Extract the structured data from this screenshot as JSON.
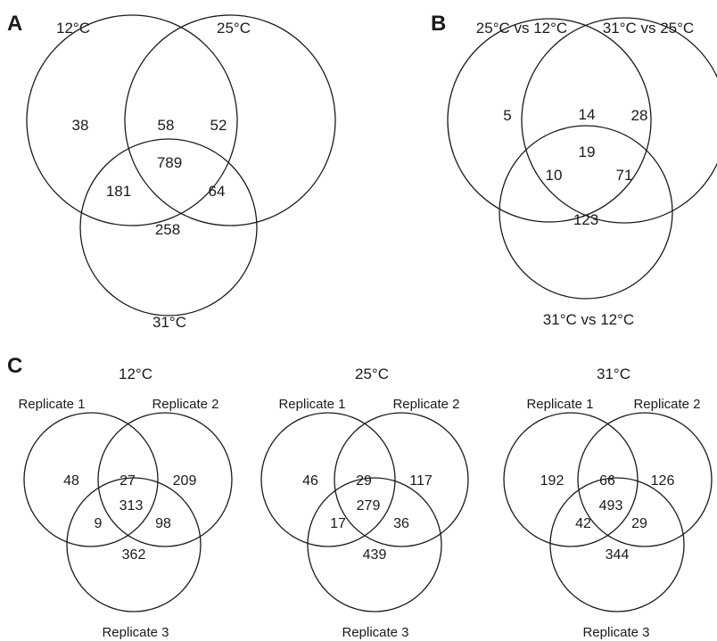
{
  "panel_a": {
    "letter": "A",
    "sets": [
      "12°C",
      "25°C",
      "31°C"
    ],
    "counts": {
      "only_1": "38",
      "one_two": "58",
      "only_2": "52",
      "all": "789",
      "one_three": "181",
      "two_three": "64",
      "only_3": "258"
    }
  },
  "panel_b": {
    "letter": "B",
    "sets": [
      "25°C vs 12°C",
      "31°C vs 25°C",
      "31°C vs 12°C"
    ],
    "counts": {
      "only_1": "5",
      "one_two": "14",
      "only_2": "28",
      "all": "19",
      "one_three": "10",
      "two_three": "71",
      "only_3": "123"
    }
  },
  "panel_c": {
    "letter": "C",
    "diagrams": [
      {
        "title": "12°C",
        "sets": [
          "Replicate 1",
          "Replicate 2",
          "Replicate 3"
        ],
        "counts": {
          "only_1": "48",
          "one_two": "27",
          "only_2": "209",
          "all": "313",
          "one_three": "9",
          "two_three": "98",
          "only_3": "362"
        }
      },
      {
        "title": "25°C",
        "sets": [
          "Replicate 1",
          "Replicate 2",
          "Replicate 3"
        ],
        "counts": {
          "only_1": "46",
          "one_two": "29",
          "only_2": "117",
          "all": "279",
          "one_three": "17",
          "two_three": "36",
          "only_3": "439"
        }
      },
      {
        "title": "31°C",
        "sets": [
          "Replicate 1",
          "Replicate 2",
          "Replicate 3"
        ],
        "counts": {
          "only_1": "192",
          "one_two": "66",
          "only_2": "126",
          "all": "493",
          "one_three": "42",
          "two_three": "29",
          "only_3": "344"
        }
      }
    ]
  }
}
